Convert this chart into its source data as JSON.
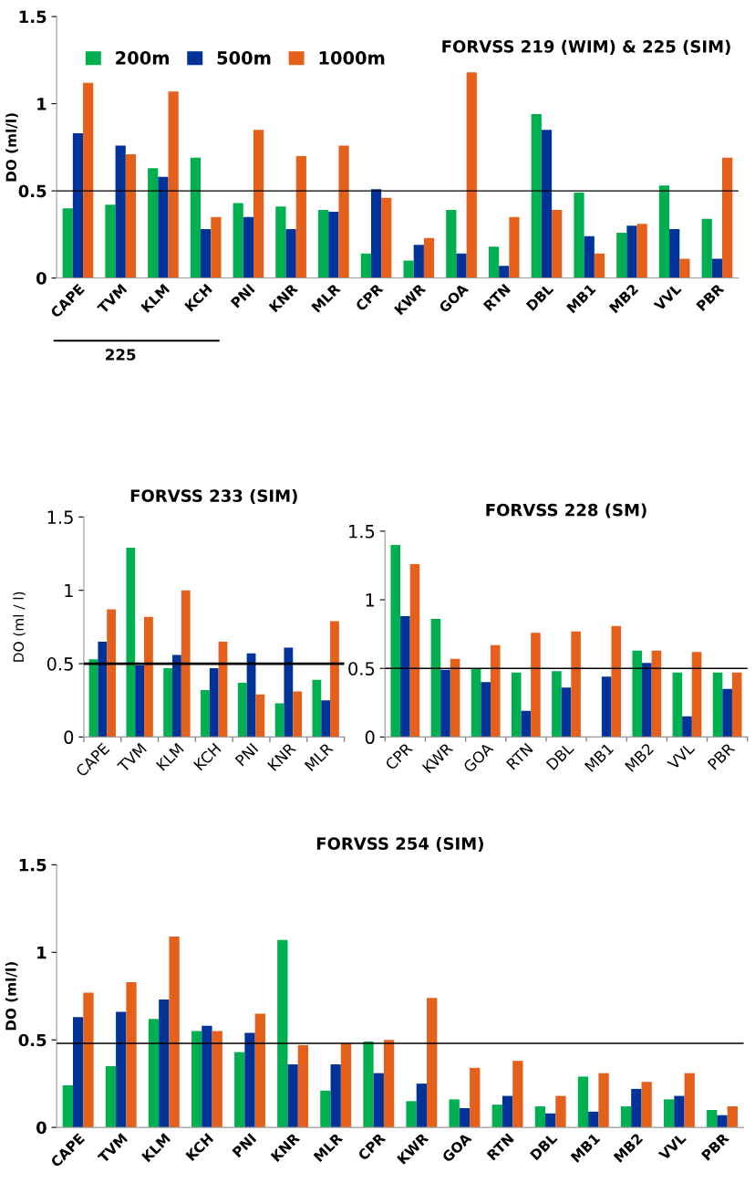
{
  "chart_data": [
    {
      "type": "bar",
      "title": "FORVSS 219 (WIM) & 225 (SIM)",
      "ylabel": "DO (ml/l)",
      "categories": [
        "CAPE",
        "TVM",
        "KLM",
        "KCH",
        "PNI",
        "KNR",
        "MLR",
        "CPR",
        "KWR",
        "GOA",
        "RTN",
        "DBL",
        "MB1",
        "MB2",
        "VVL",
        "PBR"
      ],
      "series": [
        {
          "name": "200m",
          "color": "#00b050",
          "values": [
            0.4,
            0.42,
            0.63,
            0.69,
            0.43,
            0.41,
            0.39,
            0.14,
            0.1,
            0.39,
            0.18,
            0.94,
            0.49,
            0.26,
            0.53,
            0.34
          ]
        },
        {
          "name": "500m",
          "color": "#003399",
          "values": [
            0.83,
            0.76,
            0.58,
            0.28,
            0.35,
            0.28,
            0.38,
            0.51,
            0.19,
            0.14,
            0.07,
            0.85,
            0.24,
            0.3,
            0.28,
            0.11
          ]
        },
        {
          "name": "1000m",
          "color": "#e5601b",
          "values": [
            1.12,
            0.71,
            1.07,
            0.35,
            0.85,
            0.7,
            0.76,
            0.46,
            0.23,
            1.18,
            0.35,
            0.39,
            0.14,
            0.31,
            0.11,
            0.69
          ]
        }
      ],
      "ylim": [
        0,
        1.5
      ],
      "yticks": [
        0,
        0.5,
        1,
        1.5
      ],
      "ref_lines": [
        {
          "axis": "y",
          "value": 0.5,
          "color": "#000000"
        }
      ],
      "annotations": [
        "225"
      ],
      "legend": "top left",
      "grid": false
    },
    {
      "type": "bar",
      "title": "FORVSS 233 (SIM)",
      "ylabel": "DO (ml / l)",
      "categories": [
        "CAPE",
        "TVM",
        "KLM",
        "KCH",
        "PNI",
        "KNR",
        "MLR"
      ],
      "series": [
        {
          "color": "#00b050",
          "values": [
            0.53,
            1.29,
            0.47,
            0.32,
            0.37,
            0.23,
            0.39
          ]
        },
        {
          "color": "#003399",
          "values": [
            0.65,
            0.49,
            0.56,
            0.47,
            0.57,
            0.61,
            0.25
          ]
        },
        {
          "color": "#e5601b",
          "values": [
            0.87,
            0.82,
            1.0,
            0.65,
            0.29,
            0.31,
            0.79
          ]
        }
      ],
      "ylim": [
        0,
        1.5
      ],
      "yticks": [
        0,
        0.5,
        1,
        1.5
      ],
      "ref_lines": [
        {
          "axis": "y",
          "value": 0.5,
          "color": "#000000"
        }
      ],
      "grid": false
    },
    {
      "type": "bar",
      "title": "FORVSS 228 (SM)",
      "categories": [
        "CPR",
        "KWR",
        "GOA",
        "RTN",
        "DBL",
        "MB1",
        "MB2",
        "VVL",
        "PBR"
      ],
      "series": [
        {
          "color": "#00b050",
          "values": [
            1.4,
            0.86,
            0.5,
            0.47,
            0.48,
            null,
            0.63,
            0.47,
            0.47
          ]
        },
        {
          "color": "#003399",
          "values": [
            0.88,
            0.49,
            0.4,
            0.19,
            0.36,
            0.44,
            0.54,
            0.15,
            0.35
          ]
        },
        {
          "color": "#e5601b",
          "values": [
            1.26,
            0.57,
            0.67,
            0.76,
            0.77,
            0.81,
            0.63,
            0.62,
            0.47
          ]
        }
      ],
      "ylim": [
        0,
        1.5
      ],
      "yticks": [
        0,
        0.5,
        1,
        1.5
      ],
      "ref_lines": [
        {
          "axis": "y",
          "value": 0.5,
          "color": "#000000"
        }
      ],
      "grid": false
    },
    {
      "type": "bar",
      "title": "FORVSS 254 (SIM)",
      "ylabel": "DO (ml/l)",
      "categories": [
        "CAPE",
        "TVM",
        "KLM",
        "KCH",
        "PNI",
        "KNR",
        "MLR",
        "CPR",
        "KWR",
        "GOA",
        "RTN",
        "DBL",
        "MB1",
        "MB2",
        "VVL",
        "PBR"
      ],
      "series": [
        {
          "color": "#00b050",
          "values": [
            0.24,
            0.35,
            0.62,
            0.55,
            0.43,
            1.07,
            0.21,
            0.49,
            0.15,
            0.16,
            0.13,
            0.12,
            0.29,
            0.12,
            0.16,
            0.1
          ]
        },
        {
          "color": "#003399",
          "values": [
            0.63,
            0.66,
            0.73,
            0.58,
            0.54,
            0.36,
            0.36,
            0.31,
            0.25,
            0.11,
            0.18,
            0.08,
            0.09,
            0.22,
            0.18,
            0.07
          ]
        },
        {
          "color": "#e5601b",
          "values": [
            0.77,
            0.83,
            1.09,
            0.55,
            0.65,
            0.47,
            0.48,
            0.5,
            0.74,
            0.34,
            0.38,
            0.18,
            0.31,
            0.26,
            0.31,
            0.12
          ]
        }
      ],
      "ylim": [
        0,
        1.5
      ],
      "yticks": [
        0,
        0.5,
        1,
        1.5
      ],
      "ref_lines": [
        {
          "axis": "y",
          "value": 0.48,
          "color": "#000000"
        }
      ],
      "grid": false
    }
  ]
}
